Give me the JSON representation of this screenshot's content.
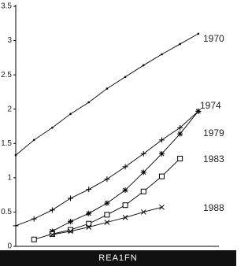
{
  "chart_data": {
    "type": "line",
    "x": [
      0,
      1,
      2,
      3,
      4,
      5,
      6,
      7,
      8,
      9,
      10
    ],
    "xlim": [
      0,
      11
    ],
    "ylim": [
      0,
      3.5
    ],
    "yticks": [
      0,
      0.5,
      1,
      1.5,
      2,
      2.5,
      3,
      3.5
    ],
    "series": [
      {
        "name": "1970",
        "color": "#000000",
        "marker": "dot",
        "values": [
          1.33,
          1.55,
          1.73,
          1.93,
          2.1,
          2.3,
          2.47,
          2.64,
          2.8,
          2.95,
          3.1
        ]
      },
      {
        "name": "1974",
        "color": "#000000",
        "marker": "plus",
        "values": [
          0.3,
          0.4,
          0.53,
          0.7,
          0.83,
          0.98,
          1.16,
          1.35,
          1.55,
          1.73,
          1.97
        ]
      },
      {
        "name": "1979",
        "color": "#000000",
        "marker": "asterisk",
        "values": [
          null,
          null,
          0.22,
          0.36,
          0.48,
          0.63,
          0.82,
          1.08,
          1.35,
          1.64,
          1.97
        ]
      },
      {
        "name": "1983",
        "color": "#000000",
        "marker": "square",
        "values": [
          null,
          0.1,
          0.18,
          0.24,
          0.33,
          0.46,
          0.6,
          0.8,
          1.02,
          1.28,
          null
        ]
      },
      {
        "name": "1988",
        "color": "#000000",
        "marker": "cross",
        "values": [
          null,
          null,
          0.17,
          0.22,
          0.28,
          0.35,
          0.42,
          0.5,
          0.57,
          null,
          null
        ]
      }
    ]
  },
  "image_id": "REA1FN"
}
